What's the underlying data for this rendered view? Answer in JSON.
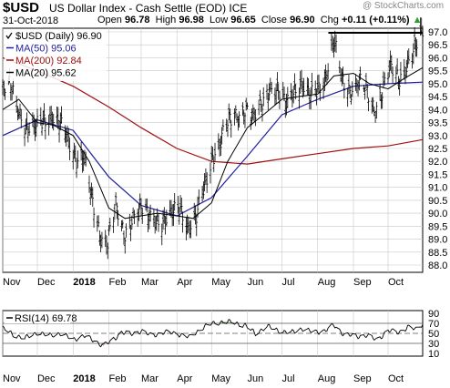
{
  "header": {
    "symbol": "$USD",
    "description": "US Dollar Index - Cash Settle (EOD)  ICE",
    "date": "31-Oct-2018",
    "open_label": "Open",
    "open": "96.78",
    "high_label": "High",
    "high": "96.98",
    "low_label": "Low",
    "low": "96.65",
    "close_label": "Close",
    "close": "96.90",
    "chg_label": "Chg",
    "chg": "+0.11 (+0.11%)",
    "up_arrow": "▲",
    "brand": "@ StockCharts.com"
  },
  "chart_data": [
    {
      "type": "ohlc",
      "legend": [
        {
          "label": "$USD (Daily) 96.90",
          "color": "#000000",
          "icon": "check"
        },
        {
          "label": "MA(50) 95.06",
          "color": "#1f1f9f",
          "icon": "line"
        },
        {
          "label": "MA(200) 92.84",
          "color": "#a01010",
          "icon": "line"
        },
        {
          "label": "MA(20) 95.62",
          "color": "#000000",
          "icon": "line"
        }
      ],
      "x_ticks": [
        "Nov",
        "Dec",
        "2018",
        "Feb",
        "Mar",
        "Apr",
        "May",
        "Jun",
        "Jul",
        "Aug",
        "Sep",
        "Oct"
      ],
      "y_ticks": [
        "97.0",
        "96.5",
        "96.0",
        "95.5",
        "95.0",
        "94.5",
        "94.0",
        "93.5",
        "93.0",
        "92.5",
        "92.0",
        "91.5",
        "91.0",
        "90.5",
        "90.0",
        "89.5",
        "89.0",
        "88.5",
        "88.0"
      ],
      "ylim": [
        87.9,
        97.2
      ],
      "price_trend": [
        [
          "2017-11-01",
          94.7
        ],
        [
          "2017-11-08",
          94.9
        ],
        [
          "2017-11-15",
          94.0
        ],
        [
          "2017-11-22",
          93.3
        ],
        [
          "2017-11-29",
          93.2
        ],
        [
          "2017-12-06",
          93.6
        ],
        [
          "2017-12-13",
          93.8
        ],
        [
          "2017-12-20",
          93.4
        ],
        [
          "2017-12-27",
          92.8
        ],
        [
          "2018-01-03",
          92.2
        ],
        [
          "2018-01-10",
          92.2
        ],
        [
          "2018-01-17",
          90.5
        ],
        [
          "2018-01-24",
          89.2
        ],
        [
          "2018-01-31",
          89.0
        ],
        [
          "2018-02-07",
          90.2
        ],
        [
          "2018-02-14",
          89.1
        ],
        [
          "2018-02-21",
          89.9
        ],
        [
          "2018-02-28",
          90.2
        ],
        [
          "2018-03-07",
          89.8
        ],
        [
          "2018-03-14",
          89.8
        ],
        [
          "2018-03-21",
          89.7
        ],
        [
          "2018-03-28",
          89.9
        ],
        [
          "2018-04-04",
          90.2
        ],
        [
          "2018-04-11",
          89.5
        ],
        [
          "2018-04-18",
          89.8
        ],
        [
          "2018-04-25",
          91.0
        ],
        [
          "2018-05-02",
          92.3
        ],
        [
          "2018-05-09",
          92.8
        ],
        [
          "2018-05-16",
          93.5
        ],
        [
          "2018-05-23",
          93.8
        ],
        [
          "2018-05-30",
          94.1
        ],
        [
          "2018-06-06",
          93.6
        ],
        [
          "2018-06-13",
          94.2
        ],
        [
          "2018-06-20",
          94.9
        ],
        [
          "2018-06-27",
          94.7
        ],
        [
          "2018-07-04",
          94.1
        ],
        [
          "2018-07-11",
          94.8
        ],
        [
          "2018-07-18",
          95.0
        ],
        [
          "2018-07-25",
          94.4
        ],
        [
          "2018-08-01",
          94.8
        ],
        [
          "2018-08-08",
          95.3
        ],
        [
          "2018-08-15",
          96.6
        ],
        [
          "2018-08-22",
          95.1
        ],
        [
          "2018-08-29",
          94.8
        ],
        [
          "2018-09-05",
          95.1
        ],
        [
          "2018-09-12",
          94.7
        ],
        [
          "2018-09-19",
          94.0
        ],
        [
          "2018-09-26",
          94.8
        ],
        [
          "2018-10-03",
          95.6
        ],
        [
          "2018-10-10",
          95.1
        ],
        [
          "2018-10-17",
          95.8
        ],
        [
          "2018-10-24",
          96.3
        ],
        [
          "2018-10-31",
          96.9
        ]
      ],
      "ma20": [
        [
          "2017-11-01",
          94.0
        ],
        [
          "2017-11-15",
          94.4
        ],
        [
          "2017-12-01",
          93.5
        ],
        [
          "2017-12-15",
          93.4
        ],
        [
          "2018-01-01",
          93.0
        ],
        [
          "2018-01-15",
          92.0
        ],
        [
          "2018-02-01",
          90.2
        ],
        [
          "2018-02-15",
          89.8
        ],
        [
          "2018-03-01",
          89.9
        ],
        [
          "2018-03-15",
          90.0
        ],
        [
          "2018-04-01",
          89.9
        ],
        [
          "2018-04-15",
          89.8
        ],
        [
          "2018-05-01",
          90.4
        ],
        [
          "2018-05-15",
          92.0
        ],
        [
          "2018-06-01",
          93.3
        ],
        [
          "2018-06-15",
          93.8
        ],
        [
          "2018-07-01",
          94.4
        ],
        [
          "2018-07-15",
          94.5
        ],
        [
          "2018-08-01",
          94.6
        ],
        [
          "2018-08-15",
          95.3
        ],
        [
          "2018-09-01",
          95.4
        ],
        [
          "2018-09-15",
          95.0
        ],
        [
          "2018-10-01",
          94.8
        ],
        [
          "2018-10-15",
          95.2
        ],
        [
          "2018-10-31",
          95.62
        ]
      ],
      "ma50": [
        [
          "2017-11-01",
          93.0
        ],
        [
          "2017-12-01",
          93.6
        ],
        [
          "2018-01-01",
          93.2
        ],
        [
          "2018-02-01",
          91.4
        ],
        [
          "2018-03-01",
          90.3
        ],
        [
          "2018-04-01",
          89.9
        ],
        [
          "2018-05-01",
          90.6
        ],
        [
          "2018-06-01",
          92.2
        ],
        [
          "2018-07-01",
          93.8
        ],
        [
          "2018-08-01",
          94.4
        ],
        [
          "2018-09-01",
          94.9
        ],
        [
          "2018-10-01",
          95.0
        ],
        [
          "2018-10-31",
          95.06
        ]
      ],
      "ma200": [
        [
          "2017-11-01",
          96.0
        ],
        [
          "2017-12-01",
          95.5
        ],
        [
          "2018-01-01",
          94.9
        ],
        [
          "2018-02-01",
          94.1
        ],
        [
          "2018-03-01",
          93.3
        ],
        [
          "2018-04-01",
          92.5
        ],
        [
          "2018-05-01",
          92.0
        ],
        [
          "2018-06-01",
          91.9
        ],
        [
          "2018-07-01",
          92.1
        ],
        [
          "2018-08-01",
          92.3
        ],
        [
          "2018-09-01",
          92.5
        ],
        [
          "2018-10-01",
          92.6
        ],
        [
          "2018-10-31",
          92.84
        ]
      ],
      "resistance_line": {
        "from": "2018-08-15",
        "to": "2018-10-31",
        "value": 97.0
      }
    },
    {
      "type": "line",
      "legend": "RSI(14) 69.78",
      "y_ticks": [
        "90",
        "70",
        "50",
        "30",
        "10"
      ],
      "ylim": [
        0,
        100
      ],
      "reference_levels": [
        70,
        50,
        30
      ],
      "x_ticks": [
        "Nov",
        "Dec",
        "2018",
        "Feb",
        "Mar",
        "Apr",
        "May",
        "Jun",
        "Jul",
        "Aug",
        "Sep",
        "Oct"
      ],
      "rsi": [
        [
          "2017-11-01",
          60
        ],
        [
          "2017-11-10",
          48
        ],
        [
          "2017-11-20",
          40
        ],
        [
          "2017-12-01",
          52
        ],
        [
          "2017-12-10",
          45
        ],
        [
          "2017-12-20",
          50
        ],
        [
          "2018-01-01",
          38
        ],
        [
          "2018-01-10",
          45
        ],
        [
          "2018-01-20",
          35
        ],
        [
          "2018-01-27",
          25
        ],
        [
          "2018-02-03",
          34
        ],
        [
          "2018-02-12",
          52
        ],
        [
          "2018-02-20",
          48
        ],
        [
          "2018-03-01",
          55
        ],
        [
          "2018-03-10",
          45
        ],
        [
          "2018-03-20",
          52
        ],
        [
          "2018-04-01",
          50
        ],
        [
          "2018-04-12",
          42
        ],
        [
          "2018-04-22",
          60
        ],
        [
          "2018-05-02",
          70
        ],
        [
          "2018-05-10",
          73
        ],
        [
          "2018-05-20",
          72
        ],
        [
          "2018-05-30",
          66
        ],
        [
          "2018-06-08",
          50
        ],
        [
          "2018-06-18",
          64
        ],
        [
          "2018-06-28",
          56
        ],
        [
          "2018-07-08",
          50
        ],
        [
          "2018-07-18",
          60
        ],
        [
          "2018-07-28",
          52
        ],
        [
          "2018-08-08",
          56
        ],
        [
          "2018-08-15",
          66
        ],
        [
          "2018-08-24",
          48
        ],
        [
          "2018-09-03",
          44
        ],
        [
          "2018-09-12",
          46
        ],
        [
          "2018-09-21",
          37
        ],
        [
          "2018-10-01",
          55
        ],
        [
          "2018-10-10",
          52
        ],
        [
          "2018-10-18",
          62
        ],
        [
          "2018-10-25",
          58
        ],
        [
          "2018-10-31",
          69.78
        ]
      ]
    }
  ],
  "colors": {
    "price": "#000000",
    "ma50": "#1f1f9f",
    "ma200": "#a01010",
    "ma20": "#000000",
    "rsi_line": "#000000",
    "rsi_overbought_fill": "#6f9a5a",
    "rsi_oversold_fill": "#b98080",
    "grid": "#c8c8c8",
    "up_arrow": "#2a9d2a"
  }
}
